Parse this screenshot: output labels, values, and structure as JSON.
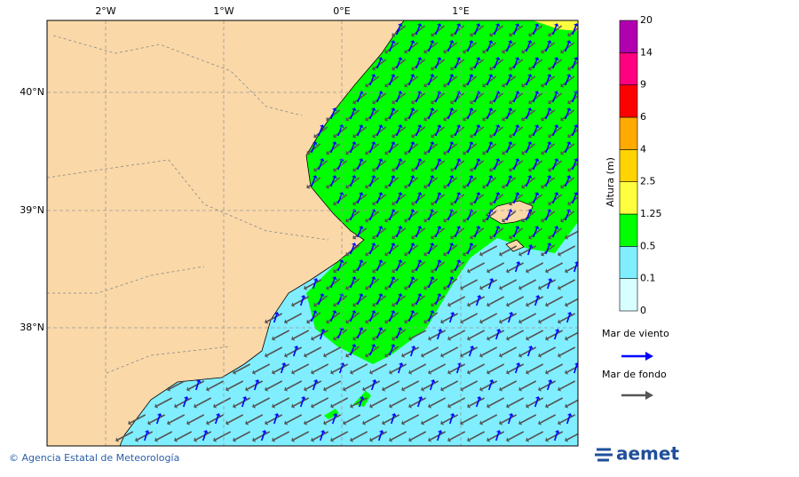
{
  "map": {
    "lon_labels": [
      "2°W",
      "1°W",
      "0°E",
      "1°E"
    ],
    "lat_labels": [
      "40°N",
      "39°N",
      "38°N"
    ],
    "colorbar": {
      "title": "Altura (m)",
      "levels": [
        "0",
        "0.1",
        "0.5",
        "1.25",
        "2.5",
        "4",
        "6",
        "9",
        "14",
        "20"
      ],
      "colors": [
        "#d8ffff",
        "#80eeff",
        "#00ff00",
        "#ffff40",
        "#ffd400",
        "#ffaa00",
        "#ff0000",
        "#ff0080",
        "#b000b0"
      ]
    },
    "legend": [
      {
        "label": "Mar de viento",
        "color": "#0000ff"
      },
      {
        "label": "Mar de fondo",
        "color": "#555555"
      }
    ]
  },
  "footer": {
    "credit": "© Agencia Estatal de Meteorología",
    "logo": "aemet"
  }
}
